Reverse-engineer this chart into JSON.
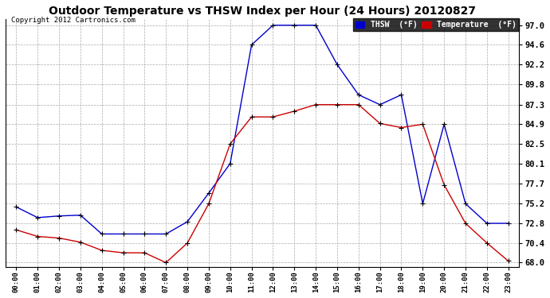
{
  "title": "Outdoor Temperature vs THSW Index per Hour (24 Hours) 20120827",
  "copyright": "Copyright 2012 Cartronics.com",
  "hours": [
    "00:00",
    "01:00",
    "02:00",
    "03:00",
    "04:00",
    "05:00",
    "06:00",
    "07:00",
    "08:00",
    "09:00",
    "10:00",
    "11:00",
    "12:00",
    "13:00",
    "14:00",
    "15:00",
    "16:00",
    "17:00",
    "18:00",
    "19:00",
    "20:00",
    "21:00",
    "22:00",
    "23:00"
  ],
  "thsw": [
    74.8,
    73.5,
    73.7,
    73.8,
    71.5,
    71.5,
    71.5,
    71.5,
    73.0,
    76.5,
    80.1,
    94.6,
    97.0,
    97.0,
    97.0,
    92.2,
    88.5,
    87.3,
    88.5,
    75.2,
    84.9,
    75.2,
    72.8,
    72.8
  ],
  "temp": [
    72.0,
    71.2,
    71.0,
    70.5,
    69.5,
    69.2,
    69.2,
    68.0,
    70.4,
    75.2,
    82.5,
    85.8,
    85.8,
    86.5,
    87.3,
    87.3,
    87.3,
    85.0,
    84.5,
    84.9,
    77.5,
    72.8,
    70.4,
    68.2
  ],
  "thsw_color": "#0000CC",
  "temp_color": "#CC0000",
  "background_color": "#ffffff",
  "plot_background": "#ffffff",
  "grid_color": "#aaaaaa",
  "yticks": [
    68.0,
    70.4,
    72.8,
    75.2,
    77.7,
    80.1,
    82.5,
    84.9,
    87.3,
    89.8,
    92.2,
    94.6,
    97.0
  ],
  "ylim": [
    67.5,
    97.8
  ],
  "legend_thsw_label": "THSW  (°F)",
  "legend_temp_label": "Temperature  (°F)"
}
